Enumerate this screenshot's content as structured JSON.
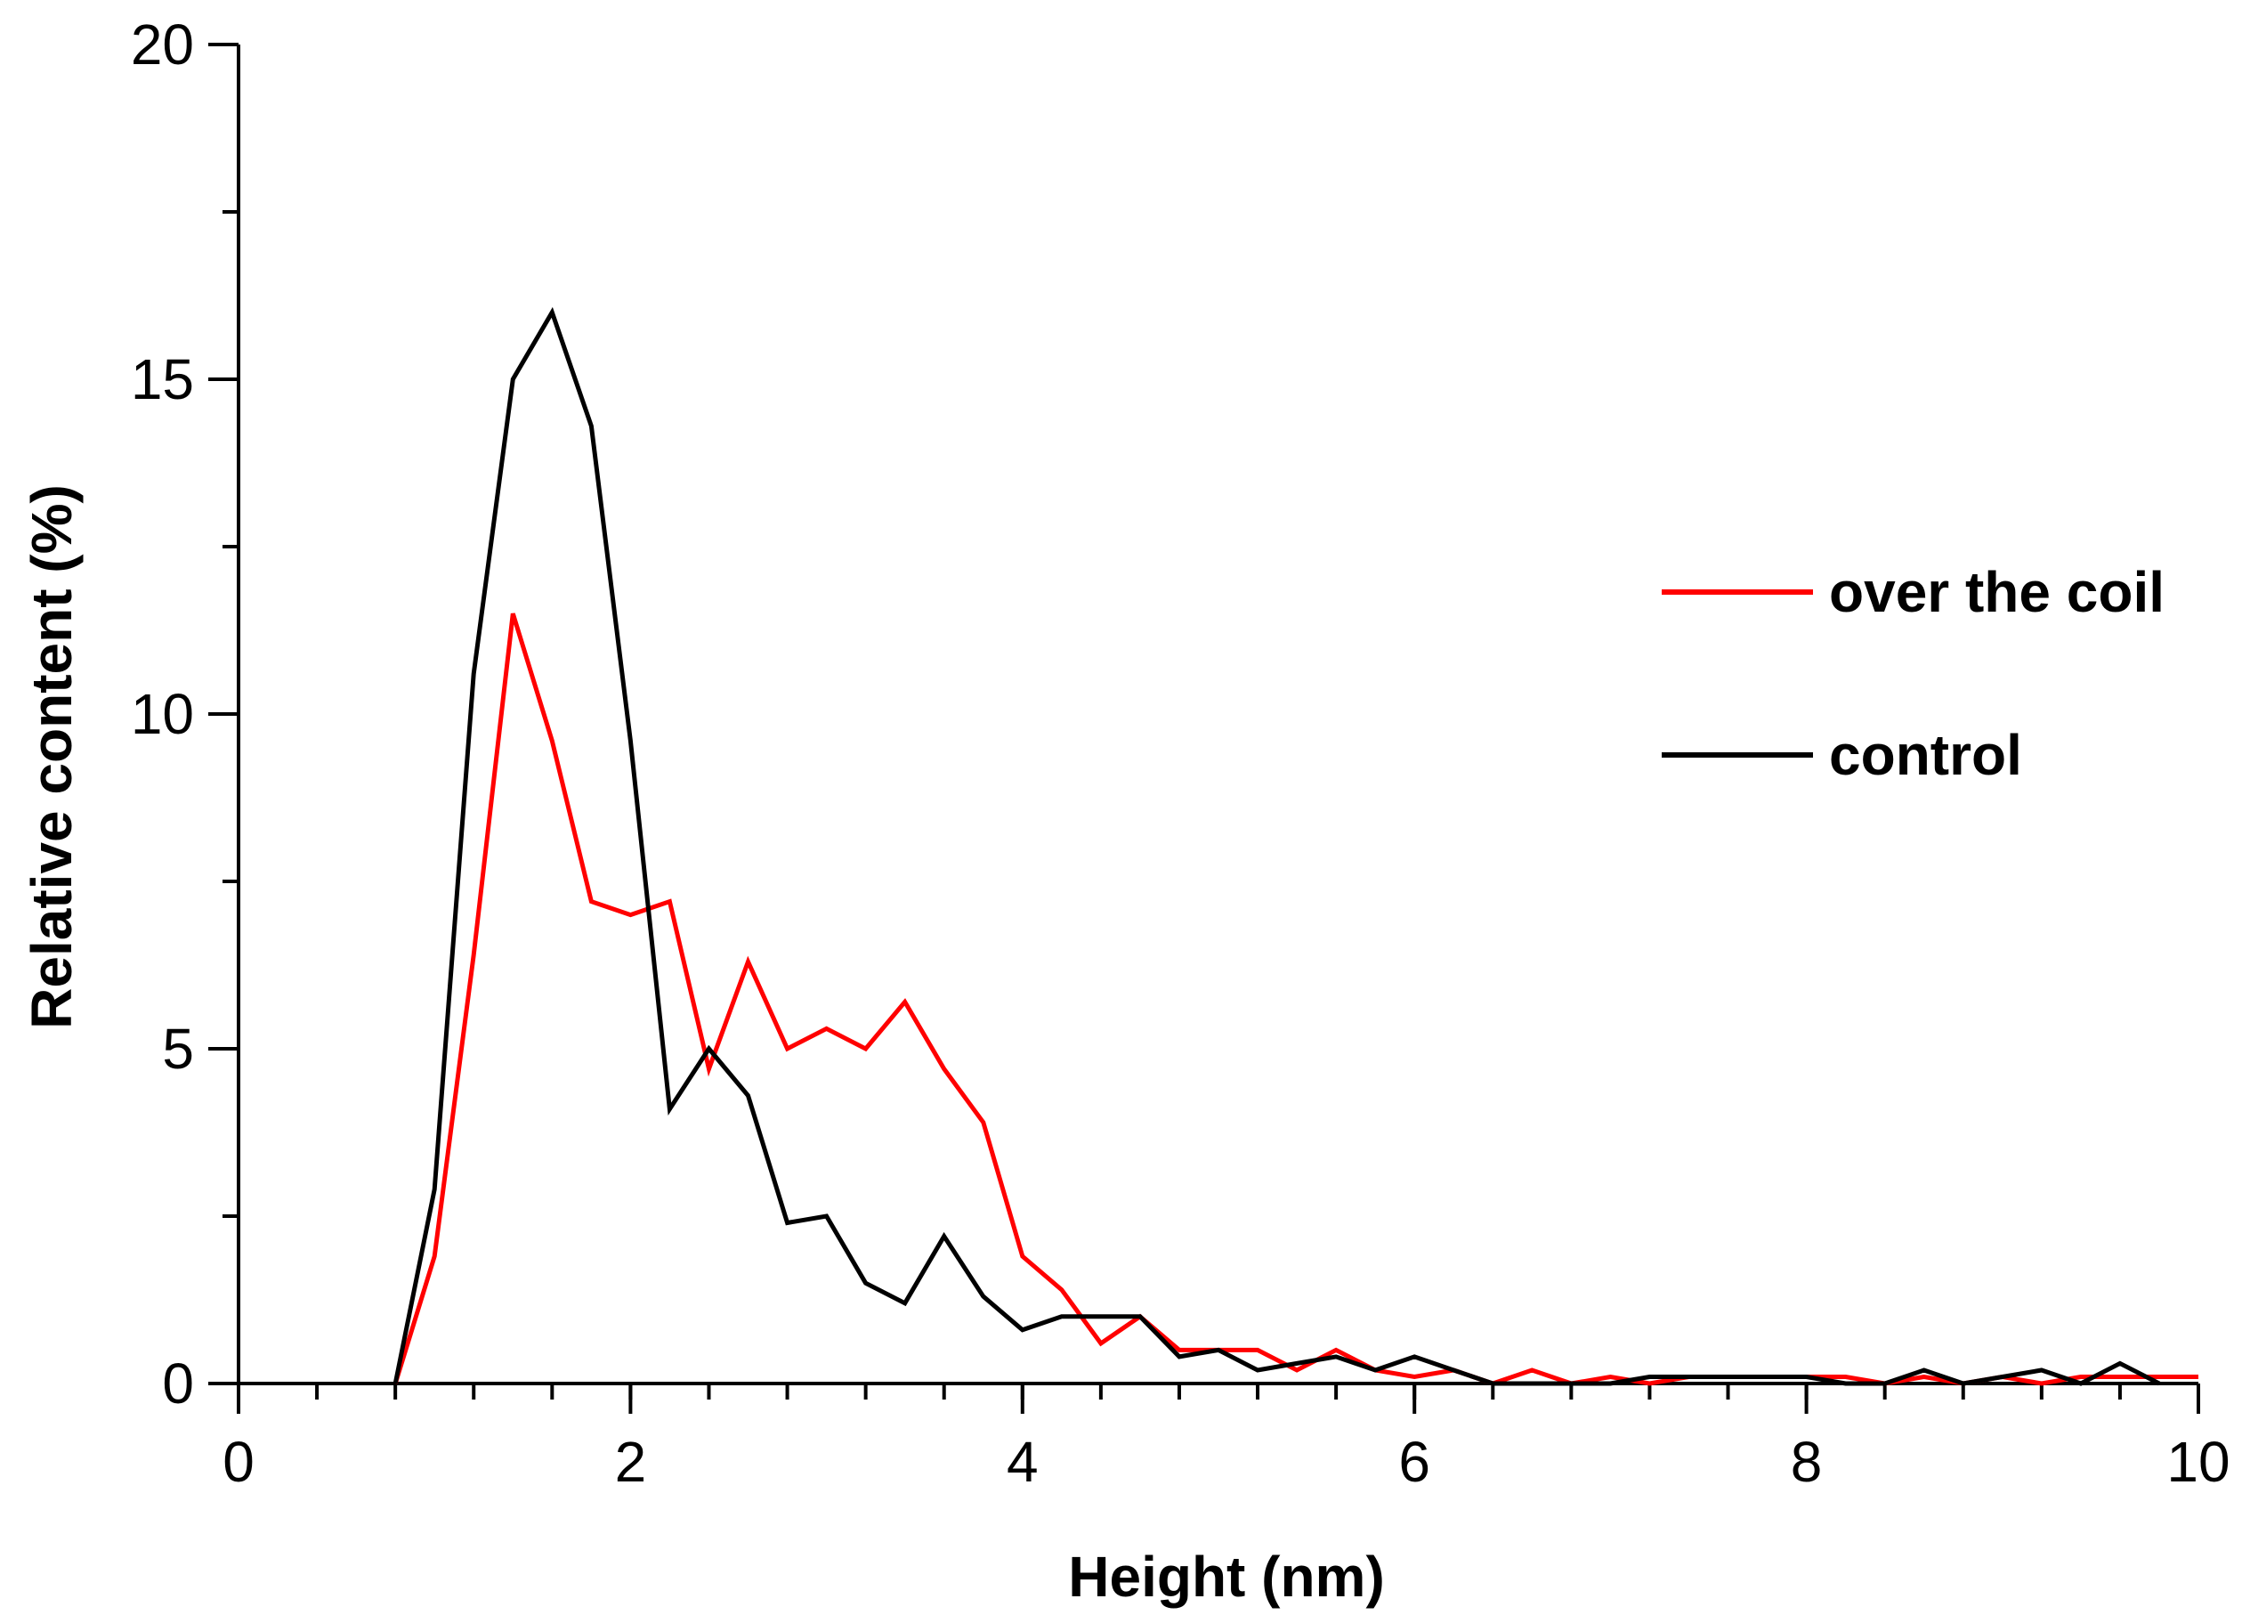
{
  "chart_data": {
    "type": "line",
    "title": "",
    "xlabel": "Height (nm)",
    "ylabel": "Relative content (%)",
    "xlim": [
      0,
      10
    ],
    "ylim": [
      0,
      20
    ],
    "x_ticks": [
      0,
      2,
      4,
      6,
      8,
      10
    ],
    "x_tick_labels": [
      "0",
      "2",
      "4",
      "6",
      "8",
      "10"
    ],
    "y_ticks": [
      0,
      5,
      10,
      15,
      20
    ],
    "y_tick_labels": [
      "0",
      "5",
      "10",
      "15",
      "20"
    ],
    "x_minor_step": 0.4,
    "y_minor_step": 2.5,
    "grid": false,
    "legend_position": "right",
    "series": [
      {
        "name": "over the coil",
        "color": "#ff0000",
        "x": [
          0.8,
          1.0,
          1.2,
          1.4,
          1.6,
          1.8,
          2.0,
          2.2,
          2.4,
          2.6,
          2.8,
          3.0,
          3.2,
          3.4,
          3.6,
          3.8,
          4.0,
          4.2,
          4.4,
          4.6,
          4.8,
          5.0,
          5.2,
          5.4,
          5.6,
          5.8,
          6.0,
          6.2,
          6.4,
          6.6,
          6.8,
          7.0,
          7.2,
          7.4,
          7.6,
          7.8,
          8.0,
          8.2,
          8.4,
          8.6,
          8.8,
          9.0,
          9.2,
          9.4,
          9.6,
          9.8,
          10.0
        ],
        "values": [
          0.0,
          1.9,
          6.4,
          11.5,
          9.6,
          7.2,
          7.0,
          7.2,
          4.7,
          6.3,
          5.0,
          5.3,
          5.0,
          5.7,
          4.7,
          3.9,
          1.9,
          1.4,
          0.6,
          1.0,
          0.5,
          0.5,
          0.5,
          0.2,
          0.5,
          0.2,
          0.1,
          0.2,
          0.0,
          0.2,
          0.0,
          0.1,
          0.0,
          0.1,
          0.1,
          0.1,
          0.1,
          0.1,
          0.0,
          0.1,
          0.0,
          0.1,
          0.0,
          0.1,
          0.1,
          0.1,
          0.1
        ]
      },
      {
        "name": "control",
        "color": "#000000",
        "x": [
          0.8,
          1.0,
          1.2,
          1.4,
          1.6,
          1.8,
          2.0,
          2.2,
          2.4,
          2.6,
          2.8,
          3.0,
          3.2,
          3.4,
          3.6,
          3.8,
          4.0,
          4.2,
          4.4,
          4.6,
          4.8,
          5.0,
          5.2,
          5.4,
          5.6,
          5.8,
          6.0,
          6.2,
          6.4,
          6.6,
          6.8,
          7.0,
          7.2,
          7.4,
          7.6,
          7.8,
          8.0,
          8.2,
          8.4,
          8.6,
          8.8,
          9.0,
          9.2,
          9.4,
          9.6,
          9.8
        ],
        "values": [
          0.0,
          2.9,
          10.6,
          15.0,
          16.0,
          14.3,
          9.6,
          4.1,
          5.0,
          4.3,
          2.4,
          2.5,
          1.5,
          1.2,
          2.2,
          1.3,
          0.8,
          1.0,
          1.0,
          1.0,
          0.4,
          0.5,
          0.2,
          0.3,
          0.4,
          0.2,
          0.4,
          0.2,
          0.0,
          0.0,
          0.0,
          0.0,
          0.1,
          0.1,
          0.1,
          0.1,
          0.1,
          0.0,
          0.0,
          0.2,
          0.0,
          0.1,
          0.2,
          0.0,
          0.3,
          0.0
        ]
      }
    ]
  }
}
